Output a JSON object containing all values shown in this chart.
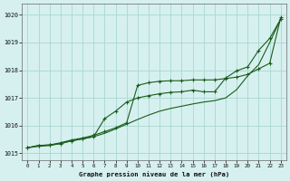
{
  "title": "Graphe pression niveau de la mer (hPa)",
  "bg_color": "#d6f0ef",
  "grid_color": "#a8d8d0",
  "line_color": "#1a5c1a",
  "x_ticks": [
    0,
    1,
    2,
    3,
    4,
    5,
    6,
    7,
    8,
    9,
    10,
    11,
    12,
    13,
    14,
    15,
    16,
    17,
    18,
    19,
    20,
    21,
    22,
    23
  ],
  "ylim": [
    1014.75,
    1020.4
  ],
  "yticks": [
    1015,
    1016,
    1017,
    1018,
    1019,
    1020
  ],
  "line1_smooth": [
    1015.2,
    1015.25,
    1015.28,
    1015.35,
    1015.45,
    1015.52,
    1015.6,
    1015.72,
    1015.88,
    1016.05,
    1016.22,
    1016.38,
    1016.52,
    1016.62,
    1016.7,
    1016.78,
    1016.85,
    1016.9,
    1017.0,
    1017.3,
    1017.8,
    1018.2,
    1019.0,
    1019.85
  ],
  "line2_marked": [
    1015.2,
    1015.28,
    1015.3,
    1015.38,
    1015.48,
    1015.55,
    1015.65,
    1015.78,
    1015.92,
    1016.1,
    1017.45,
    1017.55,
    1017.6,
    1017.62,
    1017.62,
    1017.65,
    1017.65,
    1017.65,
    1017.7,
    1017.75,
    1017.85,
    1018.05,
    1018.25,
    1019.9
  ],
  "line3_marked": [
    1015.2,
    1015.28,
    1015.3,
    1015.35,
    1015.45,
    1015.52,
    1015.6,
    1016.25,
    1016.52,
    1016.85,
    1017.0,
    1017.08,
    1017.15,
    1017.2,
    1017.22,
    1017.28,
    1017.22,
    1017.22,
    1017.72,
    1017.98,
    1018.12,
    1018.72,
    1019.15,
    1019.85
  ]
}
